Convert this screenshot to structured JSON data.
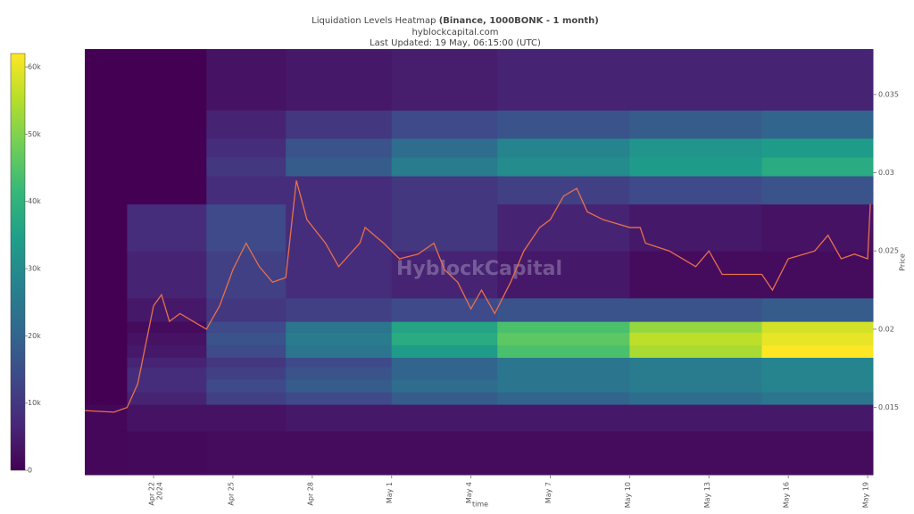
{
  "chart_data": {
    "type": "heatmap",
    "title": "Liquidation Levels Heatmap",
    "title_bold": "(Binance, 1000BONK - 1 month)",
    "subtitle": "hyblockcapital.com",
    "updated": "Last Updated: 19 May, 06:15:00 (UTC)",
    "watermark": "HyblockCapital",
    "xlabel": "time",
    "ylabel": "Price",
    "xlim": [
      -2.6,
      27.2
    ],
    "ylim": [
      0.0107,
      0.0379
    ],
    "xticks": [
      {
        "value": 0,
        "label": "Apr 22"
      },
      {
        "value": 3,
        "label": "Apr 25"
      },
      {
        "value": 6,
        "label": "Apr 28"
      },
      {
        "value": 9,
        "label": "May 1"
      },
      {
        "value": 12,
        "label": "May 4"
      },
      {
        "value": 15,
        "label": "May 7"
      },
      {
        "value": 18,
        "label": "May 10"
      },
      {
        "value": 21,
        "label": "May 13"
      },
      {
        "value": 24,
        "label": "May 16"
      },
      {
        "value": 27,
        "label": "May 19"
      }
    ],
    "x_year_label": "2024",
    "yticks": [
      0.015,
      0.02,
      0.025,
      0.03,
      0.035
    ],
    "zlim": [
      0,
      62000
    ],
    "zticks": [
      0,
      {
        "value": 10000,
        "label": "10k"
      },
      {
        "value": 20000,
        "label": "20k"
      },
      {
        "value": 30000,
        "label": "30k"
      },
      {
        "value": 40000,
        "label": "40k"
      },
      {
        "value": 50000,
        "label": "50k"
      },
      {
        "value": 60000,
        "label": "60k"
      }
    ],
    "colorscale": [
      "#440154",
      "#482878",
      "#3e4989",
      "#31688e",
      "#26828e",
      "#1f9e89",
      "#35b779",
      "#6ece58",
      "#b5de2b",
      "#fde725"
    ],
    "x_bins": [
      -2.6,
      -1,
      2,
      5,
      9,
      13,
      18,
      23,
      27.2
    ],
    "y_bins": [
      0.0107,
      0.0135,
      0.0152,
      0.016,
      0.0168,
      0.0176,
      0.0182,
      0.019,
      0.0198,
      0.0205,
      0.022,
      0.025,
      0.028,
      0.0298,
      0.031,
      0.0322,
      0.034,
      0.0379
    ],
    "z": [
      [
        1000,
        1500,
        2000,
        2000,
        2000,
        2000,
        2000,
        2000
      ],
      [
        1000,
        3000,
        3000,
        4000,
        4000,
        4000,
        4000,
        4000
      ],
      [
        0,
        6000,
        12000,
        14000,
        18000,
        20000,
        22000,
        24000
      ],
      [
        0,
        8000,
        14000,
        18000,
        22000,
        24000,
        26000,
        28000
      ],
      [
        0,
        8000,
        12000,
        16000,
        20000,
        24000,
        26000,
        28000
      ],
      [
        0,
        6000,
        10000,
        14000,
        20000,
        24000,
        26000,
        28000
      ],
      [
        0,
        4000,
        14000,
        24000,
        34000,
        44000,
        54000,
        62000
      ],
      [
        0,
        3000,
        16000,
        26000,
        38000,
        46000,
        56000,
        60000
      ],
      [
        0,
        2000,
        14000,
        24000,
        36000,
        44000,
        52000,
        58000
      ],
      [
        0,
        4000,
        10000,
        12000,
        14000,
        16000,
        16000,
        18000
      ],
      [
        0,
        6000,
        12000,
        8000,
        6000,
        4000,
        2000,
        2000
      ],
      [
        0,
        8000,
        14000,
        8000,
        10000,
        6000,
        4000,
        3000
      ],
      [
        0,
        0,
        8000,
        8000,
        10000,
        12000,
        14000,
        16000
      ],
      [
        0,
        0,
        10000,
        18000,
        26000,
        30000,
        34000,
        38000
      ],
      [
        0,
        0,
        8000,
        16000,
        22000,
        28000,
        32000,
        34000
      ],
      [
        0,
        0,
        6000,
        10000,
        14000,
        16000,
        18000,
        20000
      ],
      [
        0,
        0,
        3000,
        4000,
        5000,
        6000,
        6000,
        6000
      ]
    ],
    "line": {
      "color": "#e8704a",
      "x": [
        -2.6,
        -1.5,
        -1,
        -0.6,
        -0.3,
        0,
        0.3,
        0.6,
        1,
        1.5,
        2,
        2.5,
        3,
        3.5,
        4,
        4.5,
        5,
        5.4,
        5.8,
        6.5,
        7,
        7.8,
        8,
        8.7,
        9.3,
        10,
        10.6,
        11,
        11.5,
        12,
        12.4,
        12.9,
        13.5,
        14,
        14.6,
        15,
        15.5,
        16,
        16.4,
        17,
        18,
        18.4,
        18.6,
        19.5,
        20.5,
        21,
        21.5,
        22.5,
        23,
        23.4,
        24,
        25,
        25.5,
        26,
        26.5,
        27,
        27.1
      ],
      "y": [
        0.0148,
        0.0147,
        0.015,
        0.0165,
        0.019,
        0.0215,
        0.0222,
        0.0205,
        0.021,
        0.0205,
        0.02,
        0.0215,
        0.0238,
        0.0255,
        0.024,
        0.023,
        0.0233,
        0.0295,
        0.027,
        0.0255,
        0.024,
        0.0255,
        0.0265,
        0.0255,
        0.0245,
        0.0248,
        0.0255,
        0.0238,
        0.023,
        0.0213,
        0.0225,
        0.021,
        0.023,
        0.025,
        0.0265,
        0.027,
        0.0285,
        0.029,
        0.0275,
        0.027,
        0.0265,
        0.0265,
        0.0255,
        0.025,
        0.024,
        0.025,
        0.0235,
        0.0235,
        0.0235,
        0.0225,
        0.0245,
        0.025,
        0.026,
        0.0245,
        0.0248,
        0.0245,
        0.028
      ]
    }
  }
}
